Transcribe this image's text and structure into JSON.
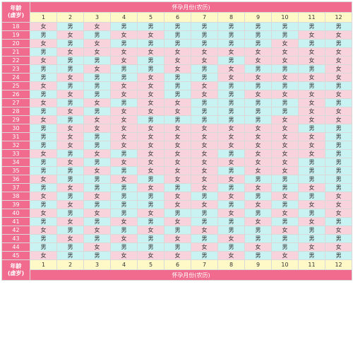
{
  "header": {
    "corner_line1": "年龄",
    "corner_line2": "(虚岁)",
    "title": "怀孕月份(农历)"
  },
  "months": [
    "1",
    "2",
    "3",
    "4",
    "5",
    "6",
    "7",
    "8",
    "9",
    "10",
    "11",
    "12"
  ],
  "rows": [
    {
      "age": "18",
      "cells": [
        "女",
        "男",
        "女",
        "男",
        "男",
        "男",
        "男",
        "男",
        "男",
        "男",
        "男",
        "男"
      ]
    },
    {
      "age": "19",
      "cells": [
        "男",
        "女",
        "男",
        "女",
        "女",
        "男",
        "男",
        "男",
        "男",
        "男",
        "女",
        "女"
      ]
    },
    {
      "age": "20",
      "cells": [
        "女",
        "男",
        "女",
        "男",
        "男",
        "男",
        "男",
        "男",
        "男",
        "女",
        "男",
        "男"
      ]
    },
    {
      "age": "21",
      "cells": [
        "男",
        "女",
        "女",
        "女",
        "女",
        "女",
        "女",
        "女",
        "女",
        "女",
        "女",
        "女"
      ]
    },
    {
      "age": "22",
      "cells": [
        "女",
        "男",
        "男",
        "女",
        "男",
        "女",
        "女",
        "男",
        "女",
        "女",
        "女",
        "女"
      ]
    },
    {
      "age": "23",
      "cells": [
        "男",
        "男",
        "女",
        "男",
        "男",
        "女",
        "男",
        "女",
        "男",
        "男",
        "男",
        "女"
      ]
    },
    {
      "age": "24",
      "cells": [
        "男",
        "女",
        "男",
        "男",
        "女",
        "男",
        "男",
        "女",
        "女",
        "女",
        "女",
        "女"
      ]
    },
    {
      "age": "25",
      "cells": [
        "女",
        "男",
        "男",
        "女",
        "女",
        "男",
        "女",
        "男",
        "男",
        "男",
        "男",
        "男"
      ]
    },
    {
      "age": "26",
      "cells": [
        "男",
        "女",
        "男",
        "女",
        "女",
        "男",
        "女",
        "男",
        "女",
        "女",
        "女",
        "女"
      ]
    },
    {
      "age": "27",
      "cells": [
        "女",
        "男",
        "女",
        "男",
        "女",
        "女",
        "男",
        "男",
        "男",
        "男",
        "女",
        "男"
      ]
    },
    {
      "age": "28",
      "cells": [
        "男",
        "女",
        "男",
        "女",
        "女",
        "女",
        "男",
        "男",
        "男",
        "男",
        "女",
        "女"
      ]
    },
    {
      "age": "29",
      "cells": [
        "女",
        "男",
        "女",
        "女",
        "男",
        "男",
        "男",
        "男",
        "男",
        "女",
        "女",
        "女"
      ]
    },
    {
      "age": "30",
      "cells": [
        "男",
        "女",
        "女",
        "女",
        "女",
        "女",
        "女",
        "女",
        "女",
        "女",
        "男",
        "男"
      ]
    },
    {
      "age": "31",
      "cells": [
        "男",
        "女",
        "男",
        "女",
        "女",
        "女",
        "女",
        "女",
        "女",
        "女",
        "女",
        "男"
      ]
    },
    {
      "age": "32",
      "cells": [
        "男",
        "女",
        "男",
        "女",
        "女",
        "女",
        "女",
        "女",
        "女",
        "女",
        "女",
        "男"
      ]
    },
    {
      "age": "33",
      "cells": [
        "女",
        "男",
        "女",
        "男",
        "女",
        "女",
        "女",
        "男",
        "女",
        "女",
        "女",
        "男"
      ]
    },
    {
      "age": "34",
      "cells": [
        "男",
        "女",
        "男",
        "女",
        "女",
        "女",
        "女",
        "女",
        "女",
        "女",
        "男",
        "男"
      ]
    },
    {
      "age": "35",
      "cells": [
        "男",
        "男",
        "女",
        "男",
        "女",
        "女",
        "女",
        "男",
        "女",
        "女",
        "男",
        "男"
      ]
    },
    {
      "age": "36",
      "cells": [
        "女",
        "男",
        "男",
        "女",
        "男",
        "女",
        "女",
        "女",
        "男",
        "男",
        "男",
        "男"
      ]
    },
    {
      "age": "37",
      "cells": [
        "男",
        "女",
        "男",
        "男",
        "女",
        "男",
        "女",
        "男",
        "女",
        "男",
        "女",
        "男"
      ]
    },
    {
      "age": "38",
      "cells": [
        "女",
        "男",
        "女",
        "男",
        "男",
        "女",
        "男",
        "女",
        "男",
        "女",
        "男",
        "女"
      ]
    },
    {
      "age": "39",
      "cells": [
        "男",
        "女",
        "男",
        "男",
        "男",
        "女",
        "女",
        "男",
        "女",
        "男",
        "女",
        "女"
      ]
    },
    {
      "age": "40",
      "cells": [
        "女",
        "男",
        "女",
        "男",
        "女",
        "男",
        "男",
        "女",
        "男",
        "女",
        "男",
        "女"
      ]
    },
    {
      "age": "41",
      "cells": [
        "男",
        "女",
        "男",
        "女",
        "男",
        "女",
        "男",
        "男",
        "女",
        "男",
        "女",
        "男"
      ]
    },
    {
      "age": "42",
      "cells": [
        "女",
        "男",
        "女",
        "男",
        "女",
        "男",
        "女",
        "男",
        "男",
        "女",
        "男",
        "女"
      ]
    },
    {
      "age": "43",
      "cells": [
        "男",
        "女",
        "男",
        "女",
        "男",
        "女",
        "男",
        "女",
        "男",
        "男",
        "男",
        "男"
      ]
    },
    {
      "age": "44",
      "cells": [
        "男",
        "男",
        "女",
        "男",
        "男",
        "男",
        "女",
        "男",
        "女",
        "男",
        "女",
        "女"
      ]
    },
    {
      "age": "45",
      "cells": [
        "女",
        "男",
        "男",
        "女",
        "女",
        "女",
        "男",
        "女",
        "男",
        "女",
        "男",
        "男"
      ]
    }
  ]
}
